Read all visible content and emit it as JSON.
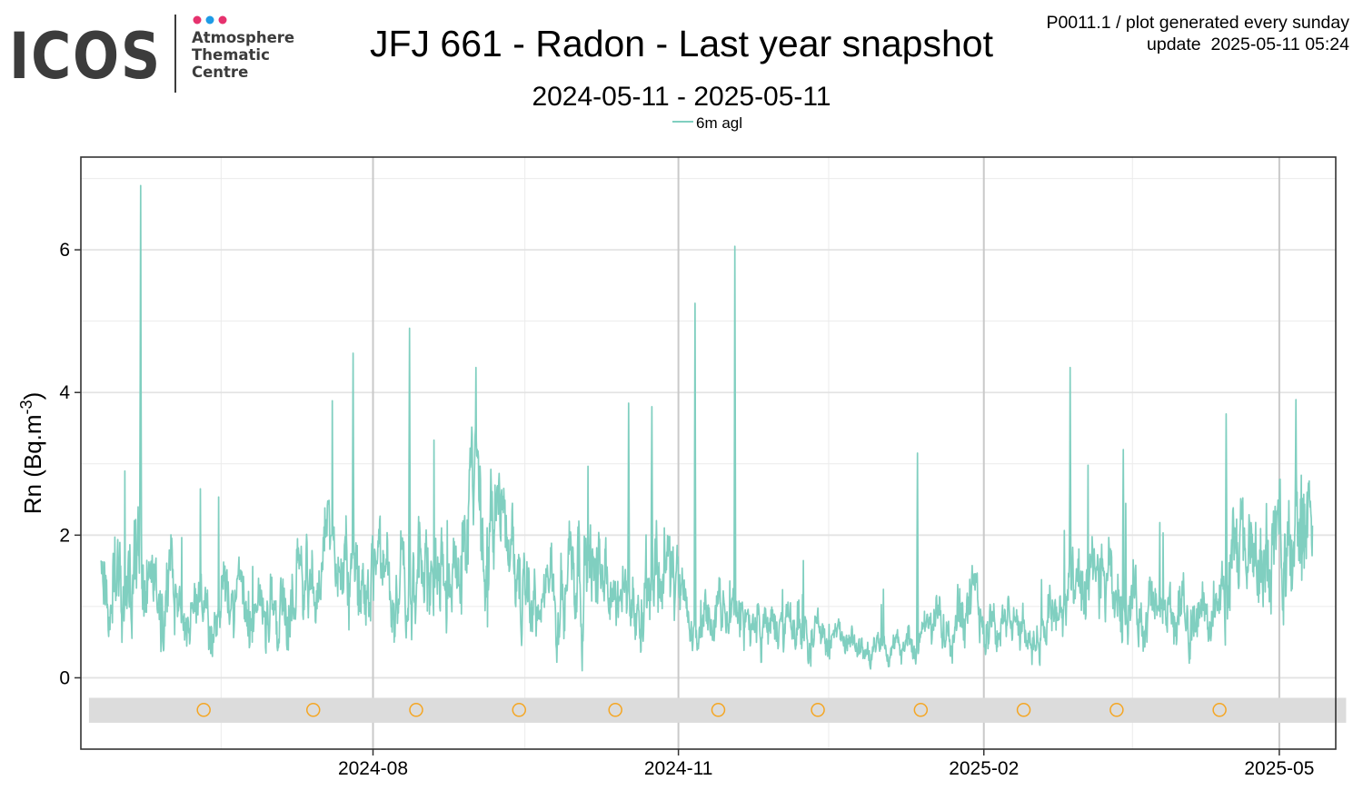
{
  "logo": {
    "wordmark": "ICOS",
    "lines": [
      "Atmosphere",
      "Thematic",
      "Centre"
    ],
    "dot_colors": [
      "#e6326e",
      "#1e9be6",
      "#e6326e"
    ],
    "wordmark_color": "#3c3c3c"
  },
  "header": {
    "title": "JFJ 661 - Radon - Last year snapshot",
    "subtitle": "2024-05-11 - 2025-05-11",
    "info_line1": "P0011.1 / plot generated every sunday",
    "info_line2": "update  2025-05-11 05:24"
  },
  "chart_data": {
    "type": "line",
    "title": "JFJ 661 - Radon - Last year snapshot",
    "subtitle": "2024-05-11 - 2025-05-11",
    "ylabel": "Rn (Bq.m-3)",
    "ylabel_base": "Rn (Bq.m",
    "ylabel_exp": "-3",
    "ylabel_close": ")",
    "xlabel": "",
    "xlim": [
      "2024-05-05",
      "2025-05-18"
    ],
    "ylim": [
      -1.0,
      7.3
    ],
    "x_ticks": [
      "2024-08",
      "2024-11",
      "2025-02",
      "2025-05"
    ],
    "x_tick_dates": [
      "2024-08-01",
      "2024-11-01",
      "2025-02-01",
      "2025-05-01"
    ],
    "y_ticks": [
      0,
      2,
      4,
      6
    ],
    "grid": true,
    "legend_position": "top",
    "series": [
      {
        "name": "6m agl",
        "color": "#80cfc0",
        "start_date": "2024-05-11",
        "end_date": "2025-05-11",
        "profile": [
          {
            "date": "2024-05-11",
            "value": 1.4
          },
          {
            "date": "2024-05-20",
            "value": 1.6
          },
          {
            "date": "2024-05-30",
            "value": 1.5
          },
          {
            "date": "2024-06-05",
            "value": 0.8
          },
          {
            "date": "2024-06-15",
            "value": 1.1
          },
          {
            "date": "2024-06-25",
            "value": 0.9
          },
          {
            "date": "2024-07-05",
            "value": 1.3
          },
          {
            "date": "2024-07-15",
            "value": 1.4
          },
          {
            "date": "2024-07-25",
            "value": 1.5
          },
          {
            "date": "2024-08-05",
            "value": 1.3
          },
          {
            "date": "2024-08-15",
            "value": 1.5
          },
          {
            "date": "2024-08-25",
            "value": 1.6
          },
          {
            "date": "2024-09-01",
            "value": 2.3
          },
          {
            "date": "2024-09-10",
            "value": 1.8
          },
          {
            "date": "2024-09-20",
            "value": 0.9
          },
          {
            "date": "2024-10-01",
            "value": 1.8
          },
          {
            "date": "2024-10-15",
            "value": 1.0
          },
          {
            "date": "2024-10-28",
            "value": 1.7
          },
          {
            "date": "2024-11-05",
            "value": 0.6
          },
          {
            "date": "2024-11-15",
            "value": 0.9
          },
          {
            "date": "2024-11-28",
            "value": 0.7
          },
          {
            "date": "2024-12-10",
            "value": 0.7
          },
          {
            "date": "2024-12-25",
            "value": 0.4
          },
          {
            "date": "2025-01-05",
            "value": 0.4
          },
          {
            "date": "2025-01-15",
            "value": 0.6
          },
          {
            "date": "2025-01-25",
            "value": 1.1
          },
          {
            "date": "2025-02-05",
            "value": 0.8
          },
          {
            "date": "2025-02-15",
            "value": 0.6
          },
          {
            "date": "2025-02-25",
            "value": 1.1
          },
          {
            "date": "2025-03-10",
            "value": 1.2
          },
          {
            "date": "2025-03-25",
            "value": 0.9
          },
          {
            "date": "2025-04-10",
            "value": 0.9
          },
          {
            "date": "2025-04-20",
            "value": 1.7
          },
          {
            "date": "2025-05-01",
            "value": 1.7
          },
          {
            "date": "2025-05-11",
            "value": 2.2
          }
        ],
        "spikes": [
          {
            "date": "2024-05-23",
            "value": 6.9
          },
          {
            "date": "2024-07-26",
            "value": 4.55
          },
          {
            "date": "2024-08-12",
            "value": 4.9
          },
          {
            "date": "2024-09-01",
            "value": 4.35
          },
          {
            "date": "2024-10-17",
            "value": 3.85
          },
          {
            "date": "2024-10-24",
            "value": 3.8
          },
          {
            "date": "2024-11-06",
            "value": 5.25
          },
          {
            "date": "2024-11-18",
            "value": 6.05
          },
          {
            "date": "2025-01-12",
            "value": 3.15
          },
          {
            "date": "2025-02-27",
            "value": 4.35
          },
          {
            "date": "2025-03-15",
            "value": 3.2
          },
          {
            "date": "2025-04-15",
            "value": 3.7
          },
          {
            "date": "2025-05-06",
            "value": 3.9
          }
        ]
      }
    ],
    "flag_band": {
      "ymin": -0.63,
      "ymax": -0.28,
      "color": "#dcdcdc"
    },
    "flag_markers": {
      "color": "#f5a623",
      "y": -0.45,
      "dates": [
        "2024-06-11",
        "2024-07-14",
        "2024-08-14",
        "2024-09-14",
        "2024-10-13",
        "2024-11-13",
        "2024-12-13",
        "2025-01-13",
        "2025-02-13",
        "2025-03-13",
        "2025-04-13"
      ]
    }
  }
}
